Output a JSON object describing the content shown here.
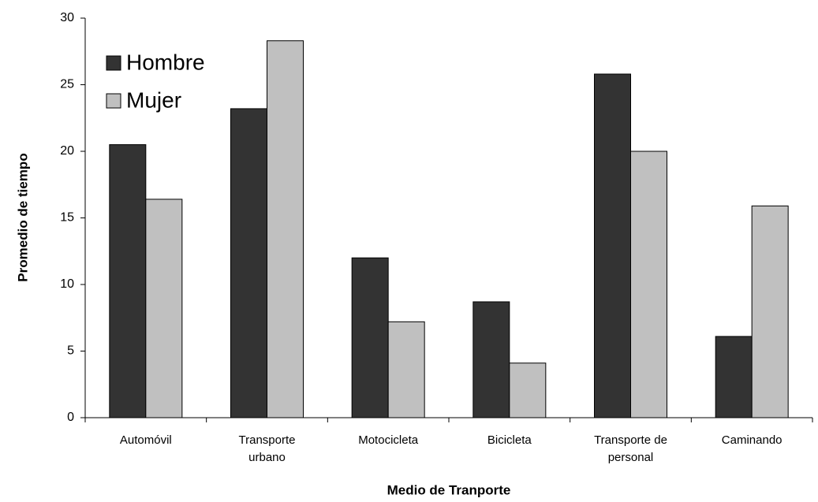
{
  "chart_data": {
    "type": "bar",
    "x_label": "Medio de Tranporte",
    "y_label": "Promedio de tiempo",
    "categories": [
      "Automóvil",
      "Transporte urbano",
      "Motocicleta",
      "Bicicleta",
      "Transporte de personal",
      "Caminando"
    ],
    "series": [
      {
        "name": "Hombre",
        "color": "#333333",
        "values": [
          20.5,
          23.2,
          12.0,
          8.7,
          25.8,
          6.1
        ]
      },
      {
        "name": "Mujer",
        "color": "#c0c0c0",
        "values": [
          16.4,
          28.3,
          7.2,
          4.1,
          20.0,
          15.9
        ]
      }
    ],
    "ylim": [
      0,
      30
    ],
    "yticks": [
      0,
      5,
      10,
      15,
      20,
      25,
      30
    ],
    "grid": false,
    "legend": "top-left"
  }
}
